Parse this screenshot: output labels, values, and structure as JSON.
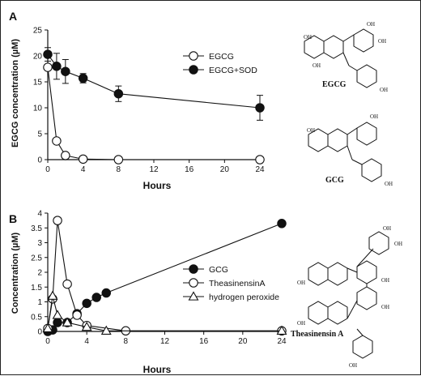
{
  "chart_data": [
    {
      "type": "line",
      "panel_label": "A",
      "xlabel": "Hours",
      "ylabel": "EGCG concentration (µM)",
      "xlim": [
        0,
        24
      ],
      "ylim": [
        0,
        25
      ],
      "xticks": [
        0,
        4,
        8,
        12,
        16,
        20,
        24
      ],
      "yticks": [
        0,
        5,
        10,
        15,
        20,
        25
      ],
      "legend_position": "top-right",
      "series": [
        {
          "name": "EGCG",
          "marker": "open-circle",
          "x": [
            0,
            1,
            2,
            4,
            8,
            24
          ],
          "y": [
            17.8,
            3.6,
            0.8,
            0.1,
            0.0,
            0.0
          ]
        },
        {
          "name": "EGCG+SOD",
          "marker": "filled-circle",
          "x": [
            0,
            1,
            2,
            4,
            8,
            24
          ],
          "y": [
            20.3,
            18.0,
            17.0,
            15.7,
            12.7,
            10.0
          ],
          "err": [
            1.3,
            2.5,
            2.3,
            0.9,
            1.5,
            2.4
          ]
        }
      ]
    },
    {
      "type": "line",
      "panel_label": "B",
      "xlabel": "Hours",
      "ylabel": "Concentration (µM)",
      "xlim": [
        0,
        24
      ],
      "ylim": [
        0,
        4
      ],
      "xticks": [
        0,
        4,
        8,
        12,
        16,
        20,
        24
      ],
      "yticks": [
        0,
        0.5,
        1,
        1.5,
        2,
        2.5,
        3,
        3.5,
        4
      ],
      "legend_position": "center-right",
      "series": [
        {
          "name": "GCG",
          "marker": "filled-circle",
          "x": [
            0,
            0.5,
            1,
            2,
            3,
            4,
            5,
            6,
            24
          ],
          "y": [
            0,
            0.05,
            0.3,
            0.3,
            0.6,
            0.95,
            1.15,
            1.3,
            3.65
          ]
        },
        {
          "name": "TheasinensinA",
          "marker": "open-circle",
          "x": [
            0,
            0.5,
            1,
            2,
            3,
            4,
            8,
            24
          ],
          "y": [
            0.1,
            1.1,
            3.75,
            1.6,
            0.55,
            0.2,
            0.02,
            0.02
          ]
        },
        {
          "name": "hydrogen peroxide",
          "marker": "open-triangle",
          "x": [
            0,
            0.5,
            1,
            2,
            4,
            6,
            24
          ],
          "y": [
            0.1,
            1.2,
            0.55,
            0.3,
            0.15,
            0.02,
            0.02
          ]
        }
      ]
    }
  ],
  "panel_a": {
    "label": "A",
    "xlabel": "Hours",
    "ylabel": "EGCG concentration (µM)",
    "legend": [
      "EGCG",
      "EGCG+SOD"
    ]
  },
  "panel_b": {
    "label": "B",
    "xlabel": "Hours",
    "ylabel": "Concentration (µM)",
    "legend": [
      "GCG",
      "TheasinensinA",
      "hydrogen peroxide"
    ]
  },
  "structures": {
    "egcg": "EGCG",
    "gcg": "GCG",
    "theasinensin": "Theasinensin A",
    "oh": "OH"
  }
}
